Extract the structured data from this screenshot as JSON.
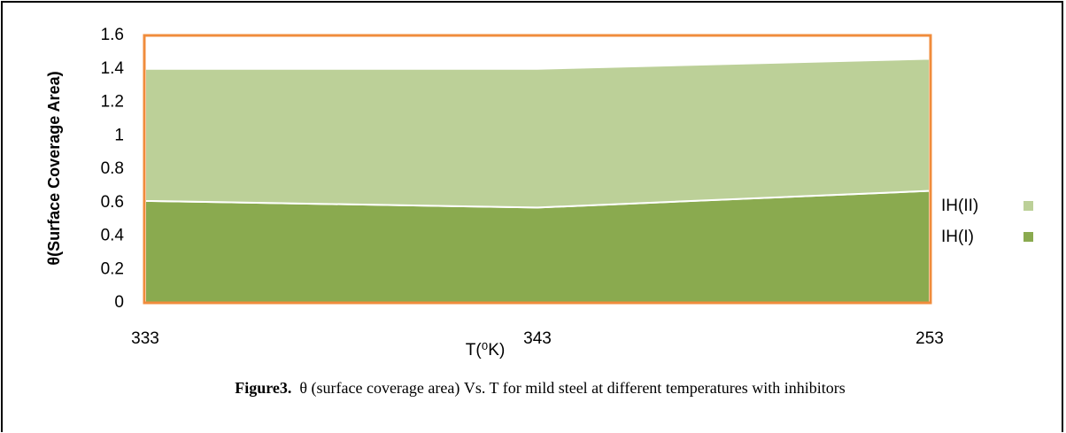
{
  "chart_data": {
    "type": "stacked_area",
    "y_label": "θ(Surface Coverage Area)",
    "x_label": "T(⁰K)",
    "categories": [
      "333",
      "343",
      "253"
    ],
    "series": [
      {
        "name": "IH(I)",
        "color": "#8aaa4f",
        "values": [
          0.61,
          0.57,
          0.67
        ]
      },
      {
        "name": "IH(II)",
        "color": "#bcd098",
        "values": [
          0.79,
          0.83,
          0.79
        ]
      }
    ],
    "ylim": [
      0,
      1.6
    ],
    "yticks": [
      0,
      0.2,
      0.4,
      0.6,
      0.8,
      1,
      1.2,
      1.4,
      1.6
    ],
    "frame_color": "#f08c3c",
    "legend": "right"
  },
  "caption": {
    "label": "Figure3.",
    "text": "θ (surface coverage area) Vs. T for mild steel at different  temperatures with inhibitors"
  }
}
